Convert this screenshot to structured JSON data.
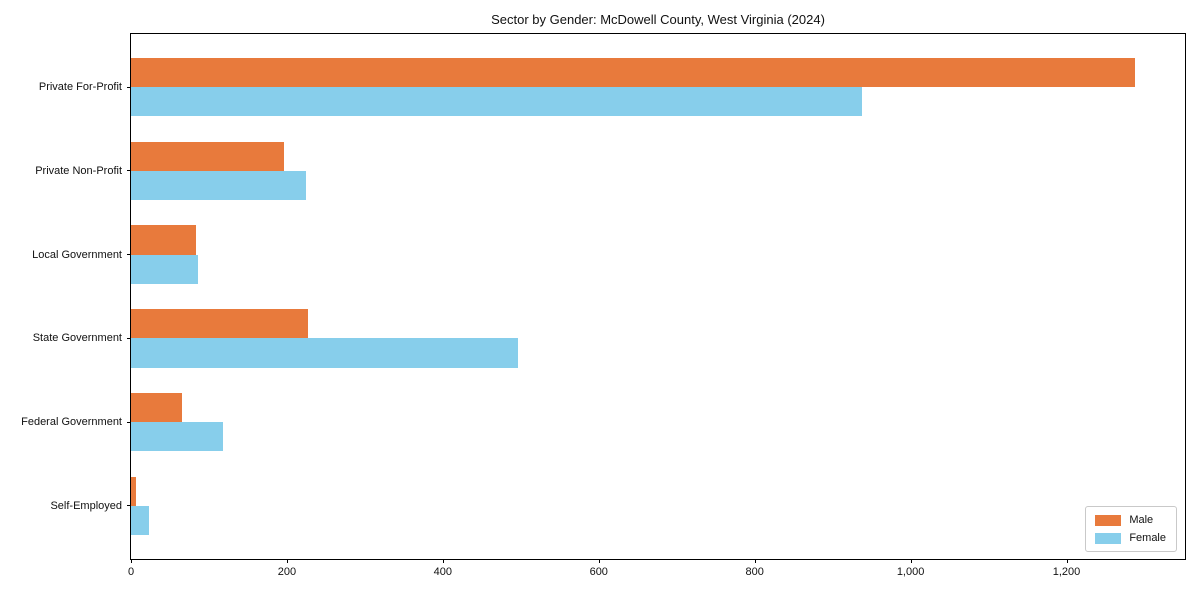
{
  "chart_data": {
    "type": "bar",
    "orientation": "horizontal",
    "title": "Sector by Gender: McDowell County, West Virginia (2024)",
    "categories": [
      "Private For-Profit",
      "Private Non-Profit",
      "Local Government",
      "State Government",
      "Federal Government",
      "Self-Employed"
    ],
    "series": [
      {
        "name": "Male",
        "color": "#e87a3c",
        "values": [
          1288,
          196,
          83,
          227,
          66,
          7
        ]
      },
      {
        "name": "Female",
        "color": "#87ceeb",
        "values": [
          938,
          224,
          86,
          497,
          118,
          23
        ]
      }
    ],
    "xlabel": "",
    "ylabel": "",
    "xlim": [
      0,
      1352
    ],
    "xticks": [
      0,
      200,
      400,
      600,
      800,
      1000,
      1200
    ],
    "xtick_labels": [
      "0",
      "200",
      "400",
      "600",
      "800",
      "1,000",
      "1,200"
    ],
    "grid": false,
    "legend_position": "lower right",
    "legend_items": [
      {
        "label": "Male",
        "color": "#e87a3c"
      },
      {
        "label": "Female",
        "color": "#87ceeb"
      }
    ]
  }
}
